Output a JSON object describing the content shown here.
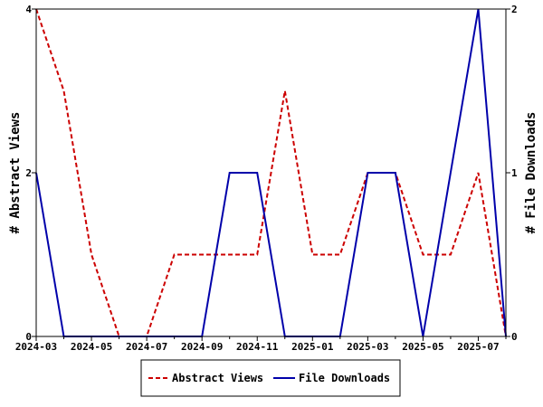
{
  "chart_data": {
    "type": "line",
    "x": [
      "2024-03",
      "2024-04",
      "2024-05",
      "2024-06",
      "2024-07",
      "2024-08",
      "2024-09",
      "2024-10",
      "2024-11",
      "2024-12",
      "2025-01",
      "2025-02",
      "2025-03",
      "2025-04",
      "2025-05",
      "2025-06",
      "2025-07",
      "2025-08"
    ],
    "x_tick_labels": [
      "2024-03",
      "2024-05",
      "2024-07",
      "2024-09",
      "2024-11",
      "2025-01",
      "2025-03",
      "2025-05",
      "2025-07"
    ],
    "ylabel": "# Abstract Views",
    "y2label": "# File Downloads",
    "ylim": [
      0,
      4
    ],
    "y2lim": [
      0,
      2
    ],
    "y_ticks": [
      "0",
      "2",
      "4"
    ],
    "y2_ticks": [
      "0",
      "1",
      "2"
    ],
    "grid": false,
    "legend_placement": "bottom",
    "series": [
      {
        "name": "Abstract Views",
        "axis": "left",
        "color": "#cc0000",
        "style": "dashed",
        "values": [
          4,
          3,
          1,
          0,
          0,
          1,
          1,
          1,
          1,
          3,
          1,
          1,
          2,
          2,
          1,
          1,
          2,
          0
        ]
      },
      {
        "name": "File Downloads",
        "axis": "right",
        "color": "#0000aa",
        "style": "solid",
        "values": [
          1,
          0,
          0,
          0,
          0,
          0,
          0,
          1,
          1,
          0,
          0,
          0,
          1,
          1,
          0,
          1,
          2,
          0
        ]
      }
    ]
  }
}
